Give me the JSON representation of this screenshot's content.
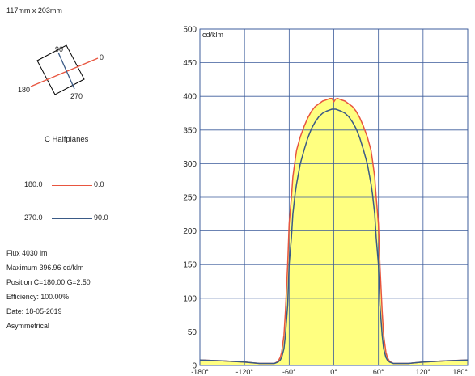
{
  "dimensions": "117mm x 203mm",
  "orientation_labels": {
    "c0": "0",
    "c90": "90",
    "c180": "180",
    "c270": "270"
  },
  "c_halfplanes_title": "C Halfplanes",
  "legend": [
    {
      "left": "180.0",
      "right": "0.0",
      "color": "#e8553f"
    },
    {
      "left": "270.0",
      "right": "90.0",
      "color": "#3a5a86"
    }
  ],
  "info": {
    "flux": "Flux 4030  lm",
    "maximum": "Maximum 396.96  cd/klm",
    "position": "Position C=180.00 G=2.50",
    "efficiency": "Efficiency: 100.00%",
    "date": "Date: 18-05-2019",
    "symmetry": "Asymmetrical"
  },
  "chart_data": {
    "type": "line",
    "ylabel": "cd/klm",
    "xlim": [
      -180,
      180
    ],
    "ylim": [
      0,
      500
    ],
    "yticks": [
      "0",
      "50",
      "100",
      "150",
      "200",
      "250",
      "300",
      "350",
      "400",
      "450",
      "500"
    ],
    "xticks": [
      "-180°",
      "-120°",
      "-60°",
      "0°",
      "60°",
      "120°",
      "180°"
    ],
    "grid": true,
    "fill_color": "#ffff80",
    "series": [
      {
        "name": "180.0 — 0.0",
        "color": "#e8553f",
        "x": [
          -180,
          -150,
          -120,
          -100,
          -80,
          -75,
          -72,
          -70,
          -67,
          -65,
          -62,
          -60,
          -57,
          -55,
          -52,
          -50,
          -45,
          -40,
          -35,
          -30,
          -25,
          -20,
          -15,
          -10,
          -5,
          -2.5,
          0,
          2.5,
          5,
          10,
          15,
          20,
          25,
          30,
          35,
          40,
          45,
          50,
          52,
          55,
          57,
          60,
          62,
          65,
          67,
          70,
          72,
          75,
          80,
          100,
          120,
          150,
          180
        ],
        "y": [
          8,
          7,
          5,
          3,
          3,
          6,
          12,
          20,
          45,
          80,
          150,
          210,
          250,
          280,
          305,
          320,
          340,
          355,
          368,
          378,
          385,
          389,
          393,
          395,
          397,
          397,
          392,
          396,
          397,
          395,
          393,
          389,
          385,
          378,
          368,
          355,
          340,
          320,
          305,
          280,
          250,
          210,
          150,
          80,
          45,
          20,
          12,
          6,
          3,
          3,
          5,
          7,
          8
        ]
      },
      {
        "name": "270.0 — 90.0",
        "color": "#3a5a86",
        "x": [
          -180,
          -150,
          -120,
          -100,
          -80,
          -75,
          -72,
          -70,
          -67,
          -65,
          -62,
          -60,
          -57,
          -55,
          -52,
          -50,
          -45,
          -40,
          -35,
          -30,
          -25,
          -20,
          -15,
          -10,
          -5,
          -2.5,
          0,
          2.5,
          5,
          10,
          15,
          20,
          25,
          30,
          35,
          40,
          45,
          50,
          52,
          55,
          57,
          60,
          62,
          65,
          67,
          70,
          72,
          75,
          80,
          100,
          120,
          150,
          180
        ],
        "y": [
          8,
          7,
          5,
          3,
          3,
          5,
          8,
          12,
          25,
          45,
          90,
          150,
          190,
          225,
          255,
          270,
          300,
          320,
          338,
          352,
          362,
          370,
          375,
          378,
          380,
          381,
          381,
          381,
          380,
          378,
          375,
          370,
          362,
          352,
          338,
          320,
          300,
          270,
          255,
          225,
          190,
          150,
          90,
          45,
          25,
          12,
          8,
          5,
          3,
          3,
          5,
          7,
          8
        ]
      }
    ]
  }
}
